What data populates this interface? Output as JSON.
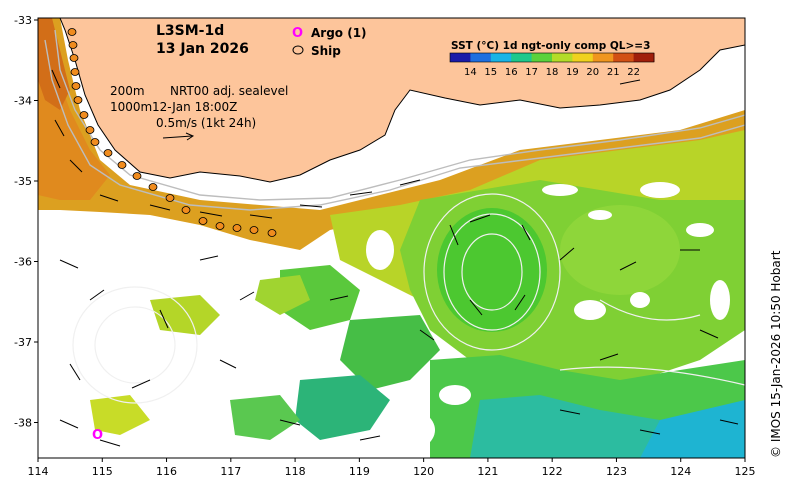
{
  "map": {
    "title_line1": "L3SM-1d",
    "title_line2": "13 Jan 2026",
    "legend": {
      "argo_symbol": "O",
      "argo_label": "Argo (1)",
      "ship_label": "Ship"
    },
    "annotation": {
      "depth1": "200m",
      "depth2": "1000m",
      "product": "NRT00 adj. sealevel",
      "datetime": "12-Jan 18:00Z",
      "scale": "0.5m/s (1kt 24h)"
    },
    "colorbar": {
      "title": "SST (°C) 1d ngt-only comp QL>=3",
      "ticks": [
        "14",
        "15",
        "16",
        "17",
        "18",
        "19",
        "20",
        "21",
        "22"
      ],
      "colors": [
        "#1a1aa8",
        "#1e6fe0",
        "#19b4e6",
        "#1ec88c",
        "#5ad23c",
        "#b4dc28",
        "#f0d21e",
        "#f0961e",
        "#d25014",
        "#a01e0a"
      ]
    },
    "credit": "© IMOS 15-Jan-2026 10:50 Hobart",
    "x_ticks": [
      "114",
      "115",
      "116",
      "117",
      "118",
      "119",
      "120",
      "121",
      "122",
      "123",
      "124",
      "125"
    ],
    "y_ticks": [
      "-33",
      "-34",
      "-35",
      "-36",
      "-37",
      "-38"
    ],
    "colors": {
      "land": "#fdc59b",
      "argo": "#ff00ff",
      "ship": "#f08c1e"
    }
  }
}
